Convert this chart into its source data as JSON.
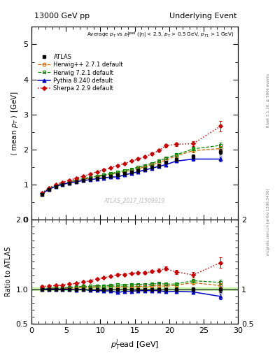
{
  "title_left": "13000 GeV pp",
  "title_right": "Underlying Event",
  "right_label1": "Rivet 3.1.10, ≥ 500k events",
  "right_label2": "mcplots.cern.ch [arXiv:1306.3436]",
  "watermark": "ATLAS_2017_I1509919",
  "xlabel": "p$_{T}^{l}$ead [GeV]",
  "ylabel_main": "⟨ mean $p_T$ ⟩ [GeV]",
  "ylabel_ratio": "Ratio to ATLAS",
  "ylim_main": [
    0.0,
    5.5
  ],
  "ylim_ratio": [
    0.5,
    2.0
  ],
  "xlim": [
    0,
    30
  ],
  "atlas_x": [
    1.5,
    2.5,
    3.5,
    4.5,
    5.5,
    6.5,
    7.5,
    8.5,
    9.5,
    10.5,
    11.5,
    12.5,
    13.5,
    14.5,
    15.5,
    16.5,
    17.5,
    18.5,
    19.5,
    21.0,
    23.5,
    27.5
  ],
  "atlas_y": [
    0.73,
    0.87,
    0.95,
    1.01,
    1.05,
    1.09,
    1.12,
    1.16,
    1.19,
    1.22,
    1.25,
    1.28,
    1.32,
    1.36,
    1.4,
    1.45,
    1.5,
    1.55,
    1.63,
    1.72,
    1.8,
    1.93
  ],
  "atlas_yerr": [
    0.01,
    0.01,
    0.01,
    0.01,
    0.01,
    0.01,
    0.01,
    0.01,
    0.01,
    0.01,
    0.01,
    0.01,
    0.01,
    0.01,
    0.01,
    0.01,
    0.02,
    0.02,
    0.02,
    0.05,
    0.05,
    0.08
  ],
  "herwig1_x": [
    1.5,
    2.5,
    3.5,
    4.5,
    5.5,
    6.5,
    7.5,
    8.5,
    9.5,
    10.5,
    11.5,
    12.5,
    13.5,
    14.5,
    15.5,
    16.5,
    17.5,
    18.5,
    19.5,
    21.0,
    23.5,
    27.5
  ],
  "herwig1_y": [
    0.74,
    0.88,
    0.96,
    1.02,
    1.07,
    1.11,
    1.15,
    1.19,
    1.23,
    1.26,
    1.3,
    1.33,
    1.37,
    1.41,
    1.46,
    1.51,
    1.57,
    1.63,
    1.7,
    1.82,
    1.97,
    2.03
  ],
  "herwig1_yerr": [
    0.01,
    0.01,
    0.01,
    0.01,
    0.01,
    0.01,
    0.01,
    0.01,
    0.01,
    0.01,
    0.01,
    0.01,
    0.01,
    0.01,
    0.01,
    0.02,
    0.02,
    0.02,
    0.03,
    0.04,
    0.05,
    0.07
  ],
  "herwig2_x": [
    1.5,
    2.5,
    3.5,
    4.5,
    5.5,
    6.5,
    7.5,
    8.5,
    9.5,
    10.5,
    11.5,
    12.5,
    13.5,
    14.5,
    15.5,
    16.5,
    17.5,
    18.5,
    19.5,
    21.0,
    23.5,
    27.5
  ],
  "herwig2_y": [
    0.74,
    0.88,
    0.97,
    1.03,
    1.08,
    1.13,
    1.17,
    1.21,
    1.25,
    1.28,
    1.32,
    1.36,
    1.4,
    1.45,
    1.5,
    1.55,
    1.61,
    1.68,
    1.75,
    1.85,
    2.02,
    2.12
  ],
  "herwig2_yerr": [
    0.01,
    0.01,
    0.01,
    0.01,
    0.01,
    0.01,
    0.01,
    0.01,
    0.01,
    0.01,
    0.01,
    0.01,
    0.01,
    0.01,
    0.01,
    0.02,
    0.02,
    0.02,
    0.02,
    0.04,
    0.05,
    0.07
  ],
  "pythia_x": [
    1.5,
    2.5,
    3.5,
    4.5,
    5.5,
    6.5,
    7.5,
    8.5,
    9.5,
    10.5,
    11.5,
    12.5,
    13.5,
    14.5,
    15.5,
    16.5,
    17.5,
    18.5,
    19.5,
    21.0,
    23.5,
    27.5
  ],
  "pythia_y": [
    0.73,
    0.87,
    0.95,
    1.01,
    1.05,
    1.08,
    1.12,
    1.14,
    1.17,
    1.19,
    1.22,
    1.22,
    1.28,
    1.32,
    1.37,
    1.42,
    1.47,
    1.52,
    1.57,
    1.67,
    1.73,
    1.73
  ],
  "pythia_yerr": [
    0.01,
    0.01,
    0.01,
    0.01,
    0.01,
    0.01,
    0.01,
    0.01,
    0.01,
    0.01,
    0.01,
    0.01,
    0.01,
    0.01,
    0.01,
    0.01,
    0.02,
    0.02,
    0.02,
    0.04,
    0.05,
    0.07
  ],
  "sherpa_x": [
    1.5,
    2.5,
    3.5,
    4.5,
    5.5,
    6.5,
    7.5,
    8.5,
    9.5,
    10.5,
    11.5,
    12.5,
    13.5,
    14.5,
    15.5,
    16.5,
    17.5,
    18.5,
    19.5,
    21.0,
    23.5,
    27.5
  ],
  "sherpa_y": [
    0.76,
    0.91,
    1.0,
    1.07,
    1.13,
    1.18,
    1.24,
    1.3,
    1.37,
    1.42,
    1.48,
    1.55,
    1.6,
    1.67,
    1.73,
    1.79,
    1.88,
    1.97,
    2.11,
    2.15,
    2.17,
    2.67
  ],
  "sherpa_yerr": [
    0.01,
    0.01,
    0.01,
    0.01,
    0.01,
    0.01,
    0.01,
    0.01,
    0.01,
    0.01,
    0.01,
    0.02,
    0.02,
    0.02,
    0.02,
    0.03,
    0.03,
    0.04,
    0.05,
    0.05,
    0.07,
    0.15
  ],
  "color_atlas": "#000000",
  "color_herwig1": "#cc6600",
  "color_herwig2": "#008800",
  "color_pythia": "#0000cc",
  "color_sherpa": "#cc0000",
  "color_band": "#aaee88",
  "xticks": [
    0,
    5,
    10,
    15,
    20,
    25,
    30
  ],
  "yticks_main": [
    0,
    1,
    2,
    3,
    4,
    5
  ],
  "yticks_ratio": [
    0.5,
    1.0,
    2.0
  ]
}
